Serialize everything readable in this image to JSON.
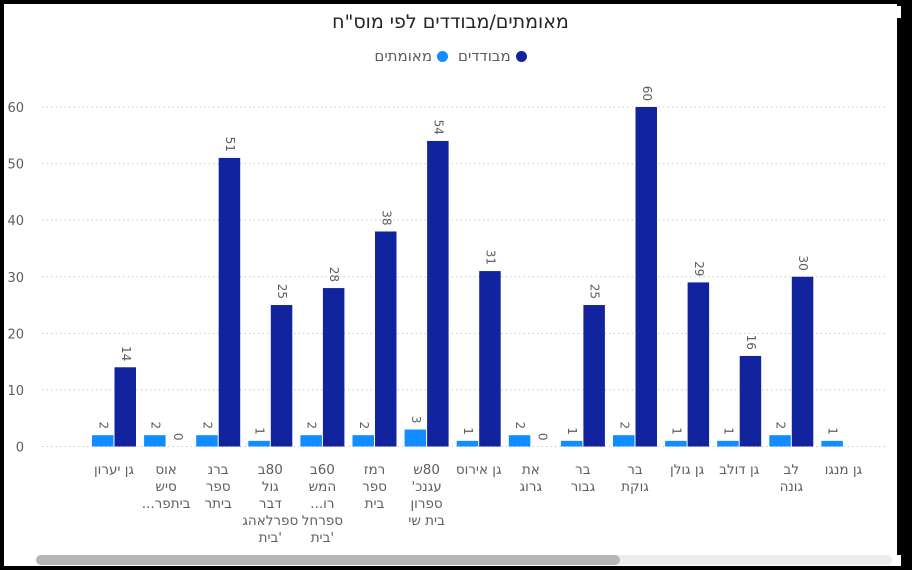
{
  "title": "מאומתים/מבודדים לפי מוס\"ח",
  "legend": {
    "items": [
      {
        "label": "מבודדים",
        "color": "#12239e"
      },
      {
        "label": "מאומתים",
        "color": "#118dff"
      }
    ]
  },
  "chart_data": {
    "type": "bar",
    "ylim": [
      0,
      60
    ],
    "yticks": [
      0,
      10,
      20,
      30,
      40,
      50,
      60
    ],
    "grid": true,
    "legend_position": "top-center",
    "categories": [
      [
        "גן יערון"
      ],
      [
        "אוס",
        "סיש",
        "ביתפר..."
      ],
      [
        "ברנ",
        "ספר",
        "ביתר"
      ],
      [
        "80ב",
        "גול",
        "דבר",
        "ספרלאהג",
        "'בית"
      ],
      [
        "60ב",
        "המש",
        "רו...",
        "ספרחל",
        "'בית"
      ],
      [
        "רמז",
        "ספר",
        "בית"
      ],
      [
        "80ש",
        "עגנכ'",
        "ספרון",
        "בית שי"
      ],
      [
        "גן אירוס"
      ],
      [
        "את",
        "גרוג"
      ],
      [
        "בר",
        "גבור"
      ],
      [
        "בר",
        "גוקת"
      ],
      [
        "גן גולן"
      ],
      [
        "גן דולב"
      ],
      [
        "לב",
        "גונה"
      ],
      [
        "גן מנגו"
      ]
    ],
    "series": [
      {
        "name": "מאומתים",
        "color": "#118dff",
        "values": [
          2,
          2,
          2,
          1,
          2,
          2,
          3,
          1,
          2,
          1,
          2,
          1,
          1,
          2,
          1
        ]
      },
      {
        "name": "מבודדים",
        "color": "#12239e",
        "values": [
          14,
          0,
          51,
          25,
          28,
          38,
          54,
          31,
          0,
          25,
          60,
          29,
          16,
          30,
          null
        ]
      }
    ]
  }
}
